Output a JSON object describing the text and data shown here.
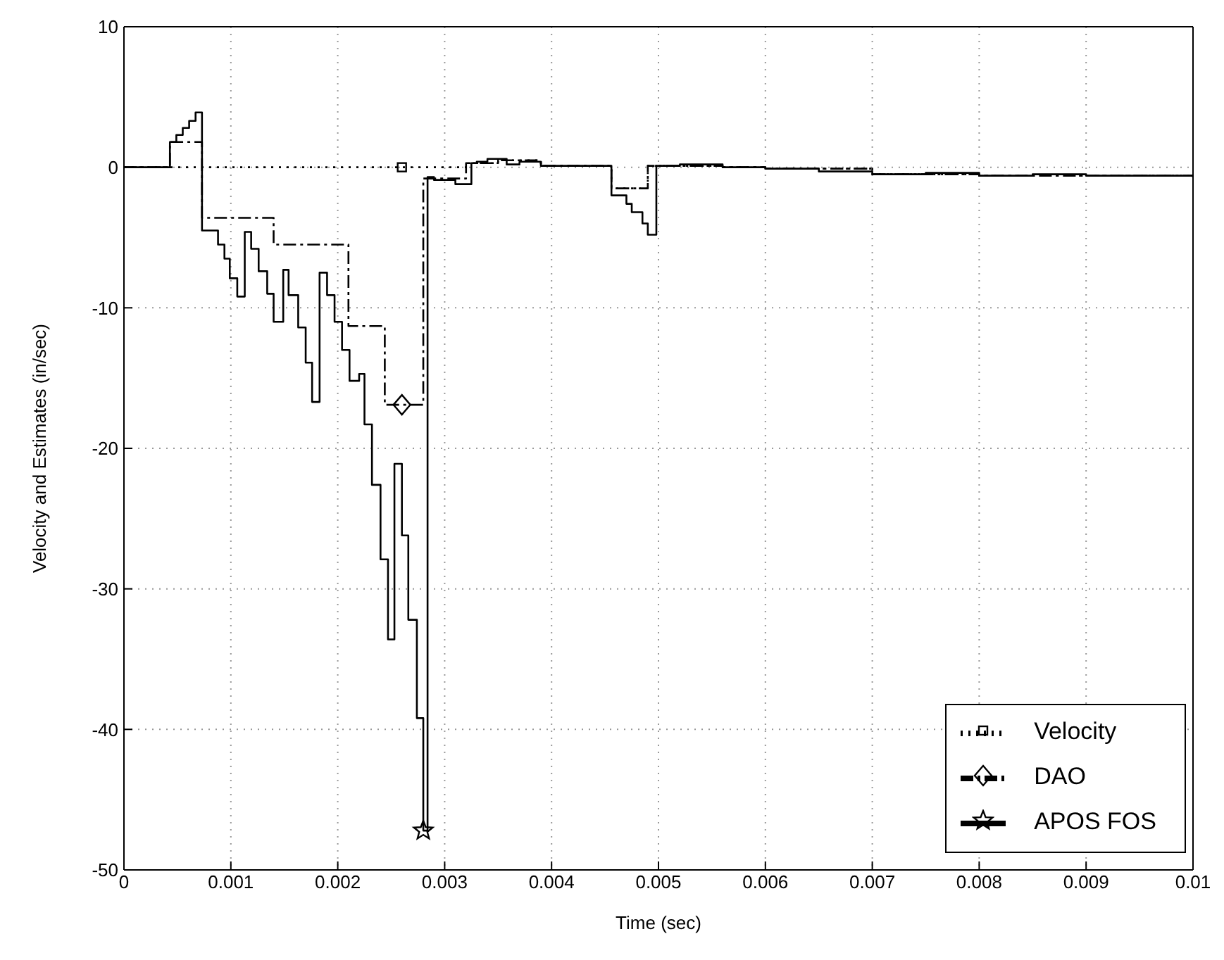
{
  "chart_data": {
    "type": "step",
    "xlabel": "Time  (sec)",
    "ylabel": "Velocity and Estimates  (in/sec)",
    "xlim": [
      0,
      0.01
    ],
    "xticks": [
      0,
      0.001,
      0.002,
      0.003,
      0.004,
      0.005,
      0.006,
      0.007,
      0.008,
      0.009,
      0.01
    ],
    "ylim": [
      -50,
      10
    ],
    "yticks": [
      -50,
      -40,
      -30,
      -20,
      -10,
      0,
      10
    ],
    "grid": true,
    "legend": "bottom right",
    "series": [
      {
        "name": "Velocity",
        "color": "#000000",
        "line_style": "dotted",
        "x": [
          0,
          0.0026,
          0.0032,
          0.0035,
          0.0039,
          0.00456,
          0.0049,
          0.0056,
          0.006,
          0.007,
          0.008,
          0.009,
          0.01
        ],
        "values": [
          0,
          0,
          0.3,
          0.5,
          0.1,
          -1.5,
          0.1,
          0,
          -0.1,
          -0.5,
          -0.6,
          -0.6,
          -0.7
        ]
      },
      {
        "name": "DAO",
        "color": "#000000",
        "line_style": "dashed",
        "x": [
          0,
          0.00043,
          0.00073,
          0.0014,
          0.0021,
          0.00244,
          0.0028,
          0.0032,
          0.0035,
          0.0039,
          0.00456,
          0.0049,
          0.0056,
          0.006,
          0.007,
          0.008,
          0.009,
          0.01
        ],
        "values": [
          0,
          1.8,
          -3.6,
          -5.5,
          -11.3,
          -16.9,
          -0.8,
          0.3,
          0.5,
          0.1,
          -1.5,
          0.1,
          0,
          -0.1,
          -0.5,
          -0.6,
          -0.6,
          -0.7
        ]
      },
      {
        "name": "APOS FOS",
        "color": "#000000",
        "line_style": "solid",
        "x": [
          0,
          0.00043,
          0.00049,
          0.00055,
          0.00061,
          0.00067,
          0.00073,
          0.00088,
          0.00094,
          0.00099,
          0.00106,
          0.00113,
          0.00119,
          0.00126,
          0.00134,
          0.0014,
          0.00149,
          0.00154,
          0.00163,
          0.0017,
          0.00176,
          0.00183,
          0.0019,
          0.00197,
          0.00204,
          0.00211,
          0.0022,
          0.00225,
          0.00232,
          0.0024,
          0.00247,
          0.00253,
          0.0026,
          0.00266,
          0.00274,
          0.0028,
          0.00284,
          0.0029,
          0.0031,
          0.00325,
          0.0033,
          0.0034,
          0.00358,
          0.0037,
          0.0039,
          0.00456,
          0.0047,
          0.00475,
          0.00485,
          0.0049,
          0.00498,
          0.0052,
          0.0056,
          0.006,
          0.0065,
          0.007,
          0.0075,
          0.008,
          0.0085,
          0.009,
          0.0095,
          0.01
        ],
        "values": [
          0,
          1.8,
          2.3,
          2.8,
          3.3,
          3.9,
          -4.5,
          -5.5,
          -6.5,
          -7.9,
          -9.2,
          -4.6,
          -5.8,
          -7.4,
          -9.0,
          -11.0,
          -7.3,
          -9.1,
          -11.4,
          -13.9,
          -16.7,
          -7.5,
          -9.1,
          -11.0,
          -13.0,
          -15.2,
          -14.7,
          -18.3,
          -22.6,
          -27.9,
          -33.6,
          -21.1,
          -26.2,
          -32.2,
          -39.2,
          -47.2,
          -0.7,
          -0.9,
          -1.2,
          0.3,
          0.4,
          0.6,
          0.2,
          0.4,
          0.1,
          -2.0,
          -2.6,
          -3.2,
          -4.0,
          -4.8,
          0.1,
          0.2,
          0,
          -0.1,
          -0.3,
          -0.5,
          -0.4,
          -0.6,
          -0.5,
          -0.6,
          -0.6,
          -0.7
        ]
      },
      {
        "type": "scatter",
        "color": "#000000",
        "marker": "square",
        "x": [
          0.0026
        ],
        "values": [
          0
        ]
      },
      {
        "type": "scatter",
        "color": "#000000",
        "marker": "diamond",
        "x": [
          0.0026
        ],
        "values": [
          -16.9
        ]
      },
      {
        "type": "scatter",
        "color": "#000000",
        "marker": "star",
        "x": [
          0.0028
        ],
        "values": [
          -47.2
        ]
      }
    ]
  }
}
